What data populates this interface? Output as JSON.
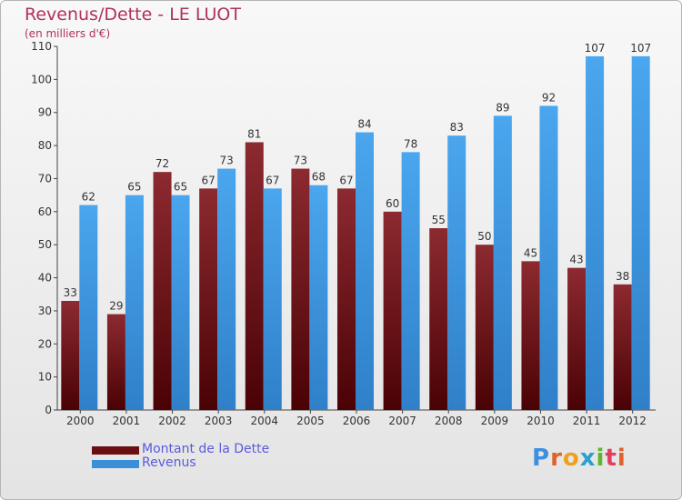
{
  "title": "Revenus/Dette - LE LUOT",
  "subtitle": "(en milliers d'€)",
  "logo": {
    "text": "Proxiti",
    "letters": [
      "P",
      "r",
      "o",
      "x",
      "i",
      "t",
      "i"
    ],
    "colors": [
      "#3d8fe0",
      "#e0622a",
      "#f0a020",
      "#2aa0d0",
      "#5cb82c",
      "#e04060",
      "#e0622a"
    ]
  },
  "colors": {
    "debt": "#6b0e12",
    "revenue": "#3b8fd8",
    "title": "#b03060"
  },
  "chart_data": {
    "type": "bar",
    "categories": [
      "2000",
      "2001",
      "2002",
      "2003",
      "2004",
      "2005",
      "2006",
      "2007",
      "2008",
      "2009",
      "2010",
      "2011",
      "2012"
    ],
    "series": [
      {
        "name": "Montant de la Dette",
        "values": [
          33,
          29,
          72,
          67,
          81,
          73,
          67,
          60,
          55,
          50,
          45,
          43,
          38
        ]
      },
      {
        "name": "Revenus",
        "values": [
          62,
          65,
          65,
          73,
          67,
          68,
          84,
          78,
          83,
          89,
          92,
          107,
          107
        ]
      }
    ],
    "ylim": [
      0,
      110
    ],
    "yticks": [
      0,
      10,
      20,
      30,
      40,
      50,
      60,
      70,
      80,
      90,
      100,
      110
    ],
    "grid": false,
    "legend_position": "bottom-left"
  }
}
